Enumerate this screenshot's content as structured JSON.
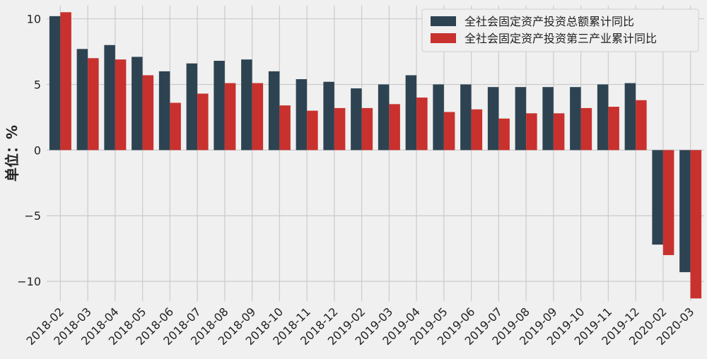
{
  "chart_data": {
    "type": "bar",
    "ylabel": "单位：%",
    "ylim": [
      -11.5,
      11.0
    ],
    "yticks": [
      10,
      5,
      0,
      -5,
      -10
    ],
    "ytick_labels": [
      "10",
      "5",
      "0",
      "−5",
      "−10"
    ],
    "grid": true,
    "legend_position": "top-right",
    "categories": [
      "2018-02",
      "2018-03",
      "2018-04",
      "2018-05",
      "2018-06",
      "2018-07",
      "2018-08",
      "2018-09",
      "2018-10",
      "2018-11",
      "2018-12",
      "2019-02",
      "2019-03",
      "2019-04",
      "2019-05",
      "2019-06",
      "2019-07",
      "2019-08",
      "2019-09",
      "2019-10",
      "2019-11",
      "2019-12",
      "2020-02",
      "2020-03"
    ],
    "series": [
      {
        "name": "全社会固定资产投资总额累计同比",
        "color": "#2e4352",
        "values": [
          10.2,
          7.7,
          8.0,
          7.1,
          6.0,
          6.6,
          6.8,
          6.9,
          6.0,
          5.4,
          5.2,
          4.7,
          5.0,
          5.7,
          5.0,
          5.0,
          4.8,
          4.8,
          4.8,
          4.8,
          5.0,
          5.1,
          -7.2,
          -9.3
        ]
      },
      {
        "name": "全社会固定资产投资第三产业累计同比",
        "color": "#c8312e",
        "values": [
          10.5,
          7.0,
          6.9,
          5.7,
          3.6,
          4.3,
          5.1,
          5.1,
          3.4,
          3.0,
          3.2,
          3.2,
          3.5,
          4.0,
          2.9,
          3.1,
          2.4,
          2.8,
          2.8,
          3.2,
          3.3,
          3.8,
          -8.0,
          -11.3
        ]
      }
    ]
  }
}
